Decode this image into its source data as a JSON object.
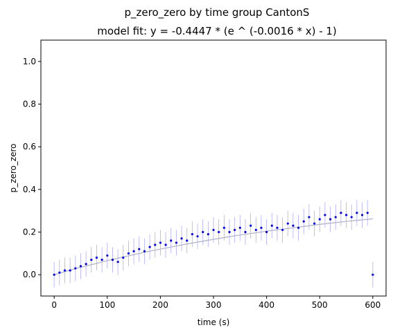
{
  "chart_data": {
    "type": "scatter",
    "title": "p_zero_zero by time group CantonS",
    "subtitle": "model fit: y = -0.4447 * (e ^ (-0.0016 * x) - 1)",
    "xlabel": "time (s)",
    "ylabel": "p_zero_zero",
    "xlim": [
      -25,
      625
    ],
    "ylim": [
      -0.1,
      1.1
    ],
    "xticks": [
      0,
      100,
      200,
      300,
      400,
      500,
      600
    ],
    "yticks": [
      0.0,
      0.2,
      0.4,
      0.6,
      0.8,
      1.0
    ],
    "xtick_labels": [
      "0",
      "100",
      "200",
      "300",
      "400",
      "500",
      "600"
    ],
    "ytick_labels": [
      "0.0",
      "0.2",
      "0.4",
      "0.6",
      "0.8",
      "1.0"
    ],
    "grid": false,
    "colors": {
      "points": "#0000ee",
      "error_bars": "#7777ff",
      "fit_line": "#b0b0c8"
    },
    "series": [
      {
        "x": [
          0,
          10,
          20,
          30,
          40,
          50,
          60,
          70,
          80,
          90,
          100,
          110,
          120,
          130,
          140,
          150,
          160,
          170,
          180,
          190,
          200,
          210,
          220,
          230,
          240,
          250,
          260,
          270,
          280,
          290,
          300,
          310,
          320,
          330,
          340,
          350,
          360,
          370,
          380,
          390,
          400,
          410,
          420,
          430,
          440,
          450,
          460,
          470,
          480,
          490,
          500,
          510,
          520,
          530,
          540,
          550,
          560,
          570,
          580,
          590,
          600
        ],
        "y": [
          0.0,
          0.01,
          0.02,
          0.02,
          0.03,
          0.04,
          0.05,
          0.07,
          0.08,
          0.07,
          0.09,
          0.07,
          0.06,
          0.08,
          0.1,
          0.11,
          0.12,
          0.11,
          0.13,
          0.14,
          0.15,
          0.14,
          0.16,
          0.15,
          0.17,
          0.16,
          0.19,
          0.18,
          0.2,
          0.19,
          0.21,
          0.2,
          0.22,
          0.2,
          0.21,
          0.22,
          0.2,
          0.23,
          0.21,
          0.22,
          0.2,
          0.23,
          0.22,
          0.21,
          0.24,
          0.23,
          0.22,
          0.25,
          0.27,
          0.24,
          0.26,
          0.28,
          0.26,
          0.27,
          0.29,
          0.28,
          0.27,
          0.29,
          0.28,
          0.29,
          0.0
        ]
      },
      {
        "type": "error_band",
        "y_err": 0.06
      },
      {
        "type": "fit",
        "x": [
          0,
          25,
          50,
          75,
          100,
          125,
          150,
          175,
          200,
          225,
          250,
          275,
          300,
          325,
          350,
          375,
          400,
          425,
          450,
          475,
          500,
          525,
          550,
          575,
          600
        ],
        "y": [
          0.0,
          0.018,
          0.035,
          0.05,
          0.066,
          0.08,
          0.094,
          0.108,
          0.12,
          0.132,
          0.144,
          0.155,
          0.166,
          0.176,
          0.186,
          0.195,
          0.204,
          0.212,
          0.22,
          0.228,
          0.236,
          0.243,
          0.25,
          0.256,
          0.262
        ]
      }
    ]
  }
}
